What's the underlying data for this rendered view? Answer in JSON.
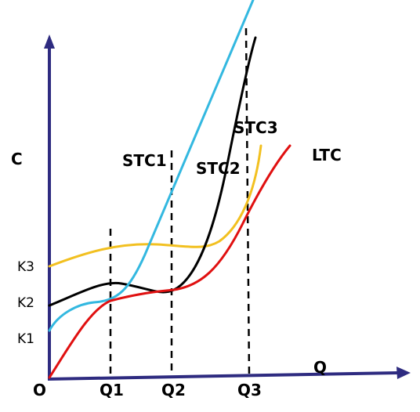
{
  "axes": {
    "y_label": "C",
    "x_label": "Q",
    "origin_label": "O"
  },
  "x_ticks": [
    "Q1",
    "Q2",
    "Q3"
  ],
  "y_ticks": [
    "K3",
    "K2",
    "K1"
  ],
  "curves": {
    "stc1": {
      "label": "STC1",
      "color": "#33b8e0"
    },
    "stc2": {
      "label": "STC2",
      "color": "#000000"
    },
    "stc3": {
      "label": "STC3",
      "color": "#f2c020"
    },
    "ltc": {
      "label": "LTC",
      "color": "#e01010"
    }
  },
  "colors": {
    "axis": "#2e2b80"
  }
}
